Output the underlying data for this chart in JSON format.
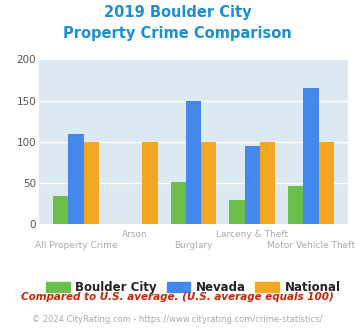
{
  "title_line1": "2019 Boulder City",
  "title_line2": "Property Crime Comparison",
  "title_color": "#1a8fd1",
  "categories": [
    "All Property Crime",
    "Arson",
    "Burglary",
    "Larceny & Theft",
    "Motor Vehicle Theft"
  ],
  "boulder_city": [
    35,
    0,
    51,
    30,
    47
  ],
  "nevada": [
    110,
    0,
    149,
    95,
    165
  ],
  "national": [
    100,
    100,
    100,
    100,
    100
  ],
  "colors": {
    "boulder_city": "#6abf4b",
    "nevada": "#4488ee",
    "national": "#f5a623"
  },
  "ylim": [
    0,
    200
  ],
  "yticks": [
    0,
    50,
    100,
    150,
    200
  ],
  "plot_bg": "#dce9f0",
  "grid_color": "#ffffff",
  "xlabel_color": "#aaaaaa",
  "legend_labels": [
    "Boulder City",
    "Nevada",
    "National"
  ],
  "footnote1": "Compared to U.S. average. (U.S. average equals 100)",
  "footnote2": "© 2024 CityRating.com - https://www.cityrating.com/crime-statistics/",
  "footnote1_color": "#cc2200",
  "footnote2_color": "#aaaaaa",
  "footnote2_link_color": "#4488ee"
}
